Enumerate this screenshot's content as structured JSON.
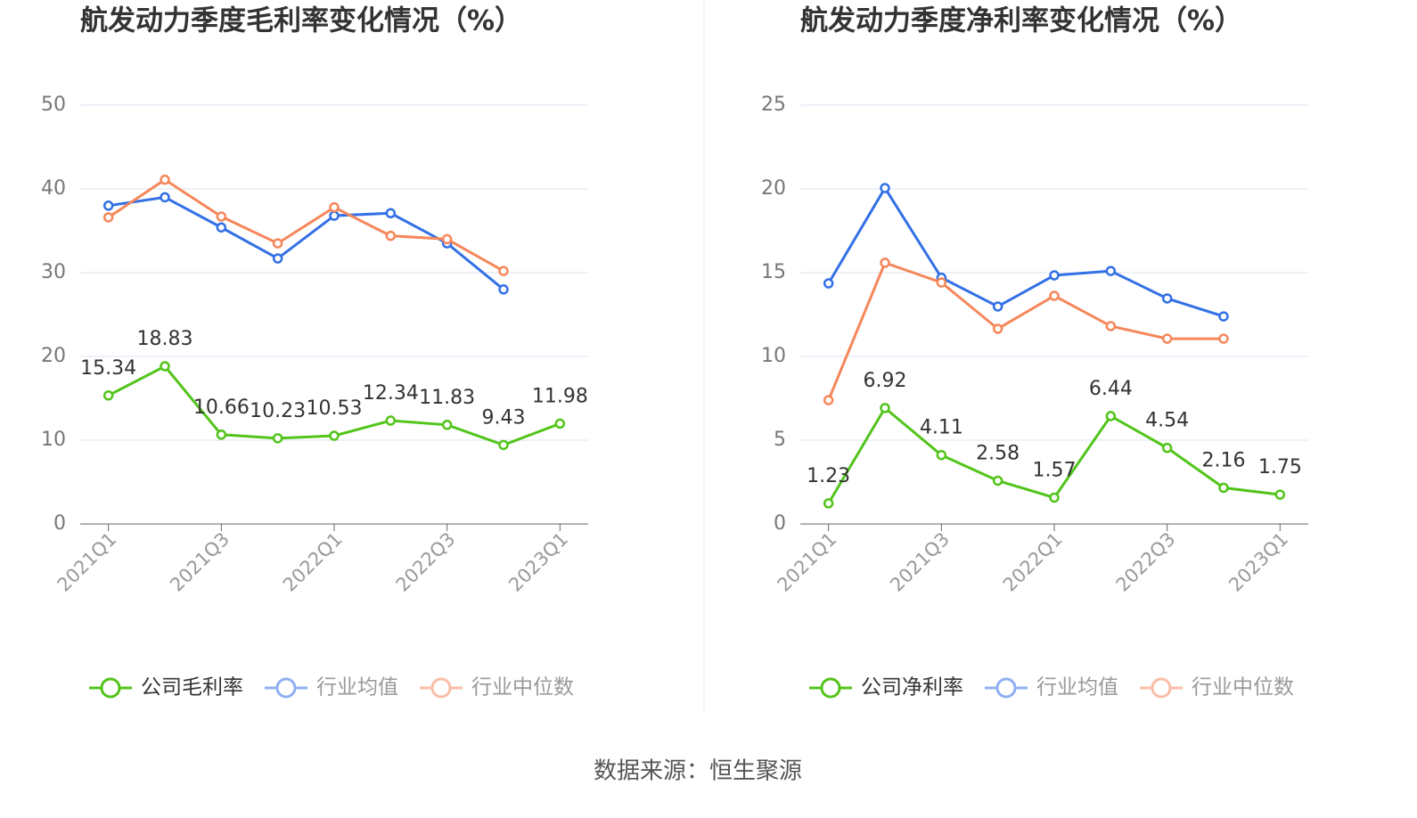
{
  "chart_data": [
    {
      "type": "line",
      "title": "航发动力季度毛利率变化情况（%）",
      "categories": [
        "2021Q1",
        null,
        "2021Q3",
        null,
        "2022Q1",
        null,
        "2022Q3",
        null,
        "2023Q1"
      ],
      "series": [
        {
          "name": "公司毛利率",
          "color": "#52c41a",
          "values": [
            15.34,
            18.83,
            10.66,
            10.23,
            10.53,
            12.34,
            11.83,
            9.43,
            11.98
          ]
        },
        {
          "name": "行业均值",
          "color": "#3370e6",
          "values": [
            38.0,
            39.0,
            35.4,
            31.7,
            36.8,
            37.1,
            33.5,
            28.0,
            null
          ]
        },
        {
          "name": "行业中位数",
          "color": "#f5875a",
          "values": [
            36.6,
            41.1,
            36.7,
            33.5,
            37.8,
            34.4,
            34.0,
            30.2,
            null
          ]
        }
      ],
      "ylim": [
        0,
        50
      ],
      "yticks": [
        0,
        10,
        20,
        30,
        40,
        50
      ],
      "grid": true,
      "legend": "bottom"
    },
    {
      "type": "line",
      "title": "航发动力季度净利率变化情况（%）",
      "categories": [
        "2021Q1",
        null,
        "2021Q3",
        null,
        "2022Q1",
        null,
        "2022Q3",
        null,
        "2023Q1"
      ],
      "series": [
        {
          "name": "公司净利率",
          "color": "#52c41a",
          "values": [
            1.23,
            6.92,
            4.11,
            2.58,
            1.57,
            6.44,
            4.54,
            2.16,
            1.75
          ]
        },
        {
          "name": "行业均值",
          "color": "#3370e6",
          "values": [
            14.36,
            20.05,
            14.7,
            12.98,
            14.84,
            15.1,
            13.46,
            12.39,
            null
          ]
        },
        {
          "name": "行业中位数",
          "color": "#f5875a",
          "values": [
            7.39,
            15.59,
            14.41,
            11.65,
            13.62,
            11.81,
            11.06,
            11.06,
            null
          ]
        }
      ],
      "ylim": [
        0,
        25
      ],
      "yticks": [
        0,
        5,
        10,
        15,
        20,
        25
      ],
      "grid": true,
      "legend": "bottom"
    }
  ],
  "source": "数据来源：恒生聚源"
}
